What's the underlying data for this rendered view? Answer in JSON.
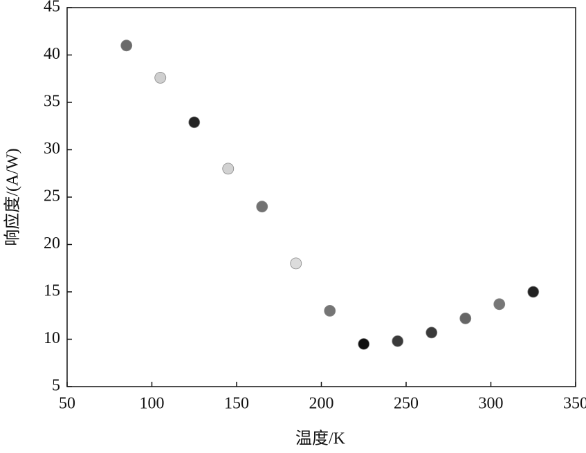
{
  "chart_data": {
    "type": "scatter",
    "x_label": "温度/K",
    "y_label": "响应度/(A/W)",
    "x": [
      85,
      105,
      125,
      145,
      165,
      185,
      205,
      225,
      245,
      265,
      285,
      305,
      325
    ],
    "values": [
      41.0,
      37.6,
      32.9,
      28.0,
      24.0,
      18.0,
      13.0,
      9.5,
      9.8,
      10.7,
      12.2,
      13.7,
      15.0
    ],
    "colors": [
      "#6a6a6a",
      "#cfcfcf",
      "#242424",
      "#d2d2d2",
      "#727272",
      "#dcdcdc",
      "#757575",
      "#111111",
      "#3a3a3a",
      "#3a3a3a",
      "#666666",
      "#777777",
      "#222222"
    ],
    "xlim": [
      50,
      350
    ],
    "xticks": [
      50,
      100,
      150,
      200,
      250,
      300,
      350
    ],
    "ylim": [
      5,
      45
    ],
    "yticks": [
      5,
      10,
      15,
      20,
      25,
      30,
      35,
      40,
      45
    ]
  }
}
